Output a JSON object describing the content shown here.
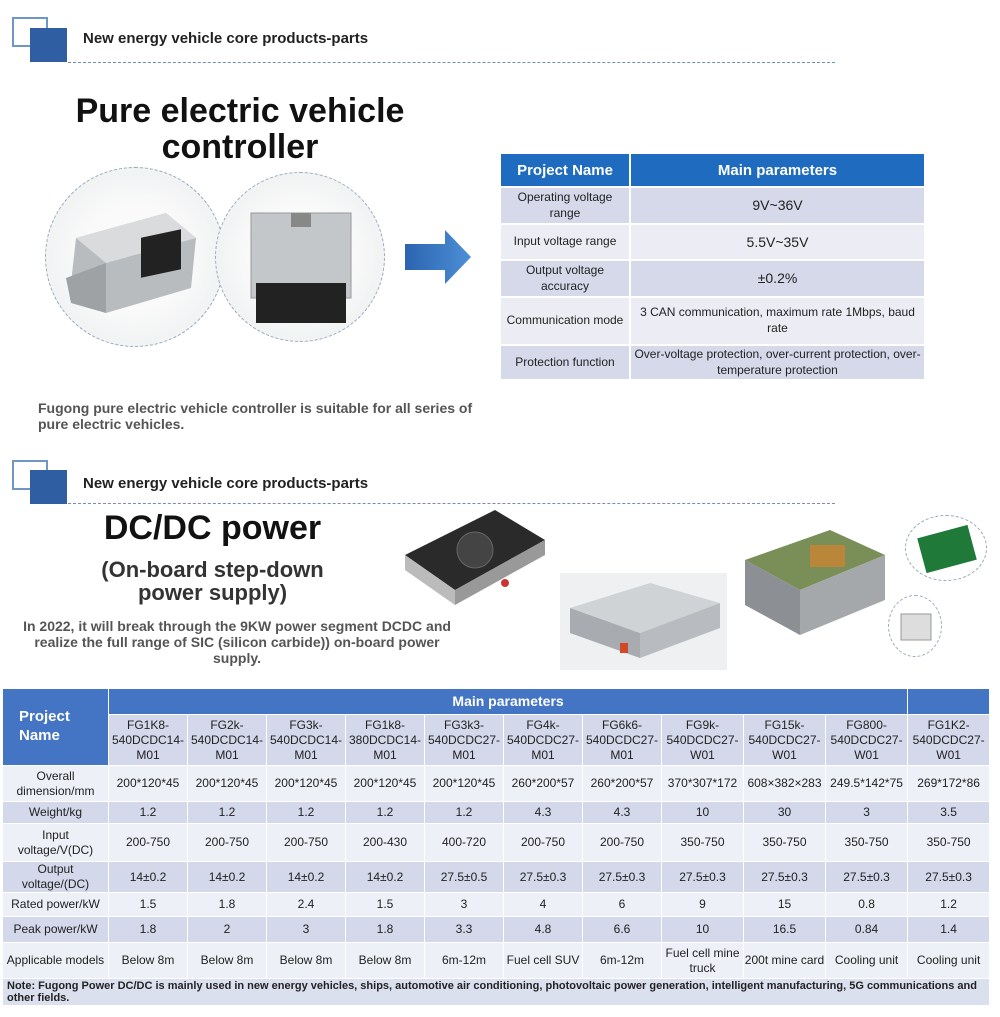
{
  "section1": {
    "header": "New energy vehicle core products-parts",
    "title": "Pure electric vehicle controller",
    "caption": "Fugong pure electric vehicle controller is suitable for all series of pure electric vehicles.",
    "table": {
      "headers": [
        "Project Name",
        "Main parameters"
      ],
      "rows": [
        [
          "Operating voltage range",
          "9V~36V"
        ],
        [
          "Input voltage range",
          "5.5V~35V"
        ],
        [
          "Output voltage accuracy",
          "±0.2%"
        ],
        [
          "Communication mode",
          "3 CAN communication, maximum rate 1Mbps, baud rate"
        ],
        [
          "Protection function",
          "Over-voltage protection, over-current protection, over-temperature protection"
        ]
      ]
    }
  },
  "section2": {
    "header": "New energy vehicle core products-parts",
    "title": "DC/DC power",
    "subtitle": "(On-board step-down power supply)",
    "description": "In 2022, it will break through the 9KW power segment DCDC and realize the full range of SIC (silicon carbide)) on-board power supply.",
    "table": {
      "project_name": "Project Name",
      "main_parameters": "Main parameters",
      "models": [
        "FG1K8-540DCDC14-M01",
        "FG2k-540DCDC14-M01",
        "FG3k-540DCDC14-M01",
        "FG1k8-380DCDC14-M01",
        "FG3k3-540DCDC27-M01",
        "FG4k-540DCDC27-M01",
        "FG6k6-540DCDC27-M01",
        "FG9k-540DCDC27-W01",
        "FG15k-540DCDC27-W01",
        "FG800-540DCDC27-W01",
        "FG1K2-540DCDC27-W01"
      ],
      "rows": [
        {
          "label": "Overall dimension/mm",
          "values": [
            "200*120*45",
            "200*120*45",
            "200*120*45",
            "200*120*45",
            "200*120*45",
            "260*200*57",
            "260*200*57",
            "370*307*172",
            "608×382×283",
            "249.5*142*75",
            "269*172*86"
          ]
        },
        {
          "label": "Weight/kg",
          "values": [
            "1.2",
            "1.2",
            "1.2",
            "1.2",
            "1.2",
            "4.3",
            "4.3",
            "10",
            "30",
            "3",
            "3.5"
          ]
        },
        {
          "label": "Input voltage/V(DC)",
          "values": [
            "200-750",
            "200-750",
            "200-750",
            "200-430",
            "400-720",
            "200-750",
            "200-750",
            "350-750",
            "350-750",
            "350-750",
            "350-750"
          ]
        },
        {
          "label": "Output voltage/(DC)",
          "values": [
            "14±0.2",
            "14±0.2",
            "14±0.2",
            "14±0.2",
            "27.5±0.5",
            "27.5±0.3",
            "27.5±0.3",
            "27.5±0.3",
            "27.5±0.3",
            "27.5±0.3",
            "27.5±0.3"
          ]
        },
        {
          "label": "Rated power/kW",
          "values": [
            "1.5",
            "1.8",
            "2.4",
            "1.5",
            "3",
            "4",
            "6",
            "9",
            "15",
            "0.8",
            "1.2"
          ]
        },
        {
          "label": "Peak power/kW",
          "values": [
            "1.8",
            "2",
            "3",
            "1.8",
            "3.3",
            "4.8",
            "6.6",
            "10",
            "16.5",
            "0.84",
            "1.4"
          ]
        },
        {
          "label": "Applicable models",
          "values": [
            "Below 8m",
            "Below 8m",
            "Below 8m",
            "Below 8m",
            "6m-12m",
            "Fuel cell SUV",
            "6m-12m",
            "Fuel cell mine truck",
            "200t mine card",
            "Cooling unit",
            "Cooling unit"
          ]
        }
      ],
      "note": "Note: Fugong Power DC/DC is mainly used in new energy vehicles, ships, automotive air conditioning, photovoltaic power generation, intelligent manufacturing, 5G communications and other fields."
    }
  },
  "colors": {
    "accent": "#2f5ea3",
    "table_header": "#1f6bc0",
    "table_header2": "#4474c4"
  }
}
